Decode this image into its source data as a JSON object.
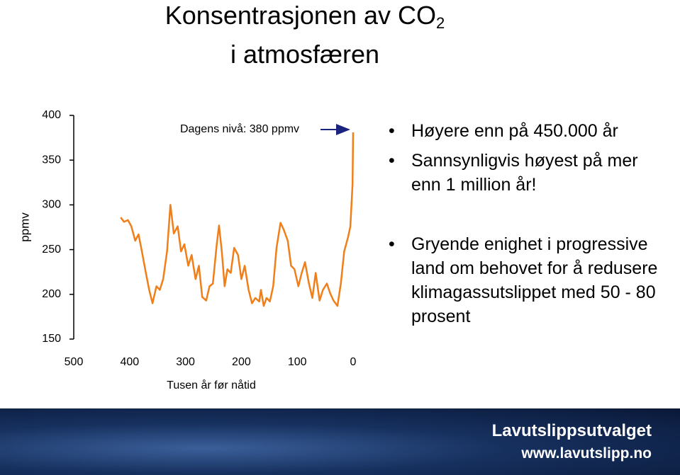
{
  "header": {
    "title": "Konsentrasjonen av CO",
    "title_sub": "2",
    "title_line2": "i atmosfæren"
  },
  "chart_data": {
    "type": "line",
    "ylabel": "ppmv",
    "xlabel": "Tusen år før nåtid",
    "annotation": "Dagens nivå: 380 ppmv",
    "xlim": [
      500,
      0
    ],
    "ylim": [
      150,
      400
    ],
    "xticks": [
      500,
      400,
      300,
      200,
      100,
      0
    ],
    "yticks": [
      150,
      200,
      250,
      300,
      350,
      400
    ],
    "x": [
      416,
      410,
      403,
      397,
      390,
      384,
      378,
      371,
      365,
      359,
      352,
      346,
      340,
      333,
      327,
      321,
      314,
      308,
      302,
      295,
      289,
      282,
      276,
      270,
      263,
      257,
      251,
      244,
      240,
      235,
      230,
      225,
      219,
      213,
      206,
      200,
      194,
      187,
      181,
      175,
      168,
      165,
      160,
      155,
      149,
      143,
      137,
      130,
      124,
      117,
      111,
      105,
      98,
      92,
      86,
      79,
      73,
      67,
      60,
      54,
      47,
      41,
      35,
      28,
      22,
      16,
      9,
      5,
      1,
      0
    ],
    "series": [
      {
        "color": "#f07f1a",
        "values": [
          286,
          281,
          283,
          276,
          260,
          267,
          248,
          224,
          205,
          190,
          209,
          205,
          217,
          248,
          300,
          268,
          276,
          248,
          256,
          232,
          244,
          217,
          232,
          197,
          193,
          209,
          212,
          256,
          277,
          248,
          209,
          228,
          224,
          252,
          244,
          217,
          232,
          205,
          190,
          196,
          192,
          205,
          187,
          196,
          192,
          209,
          252,
          280,
          272,
          260,
          232,
          228,
          209,
          224,
          236,
          212,
          196,
          224,
          193,
          205,
          212,
          201,
          193,
          187,
          212,
          248,
          264,
          276,
          323,
          381
        ]
      }
    ]
  },
  "bullets": [
    "Høyere enn på 450.000 år",
    "Sannsynligvis høyest på mer enn 1 million år!",
    "Gryende enighet i progressive land om behovet for å redusere klimagassutslippet med 50 - 80 prosent"
  ],
  "footer": {
    "name": "Lavutslippsutvalget",
    "url": "www.lavutslipp.no"
  }
}
